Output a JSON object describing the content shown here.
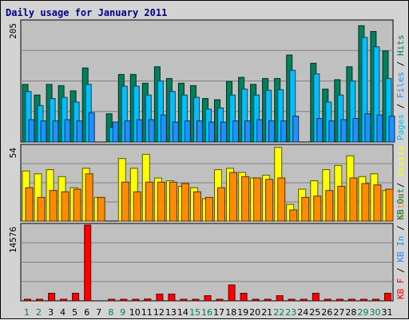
{
  "chart_data": {
    "type": "bar",
    "title": "Daily usage for January 2011",
    "categories": [
      "1",
      "2",
      "3",
      "4",
      "5",
      "6",
      "7",
      "8",
      "9",
      "10",
      "11",
      "12",
      "13",
      "14",
      "15",
      "16",
      "17",
      "18",
      "19",
      "20",
      "21",
      "22",
      "23",
      "24",
      "25",
      "26",
      "27",
      "28",
      "29",
      "30",
      "31"
    ],
    "weekend_days": [
      "1",
      "2",
      "8",
      "9",
      "15",
      "16",
      "22",
      "23",
      "29",
      "30"
    ],
    "colors": {
      "pages": "#00bfff",
      "files": "#1e90ff",
      "hits": "#00805c",
      "visits": "#ffff00",
      "sites": "#ff8c00",
      "kb": "#ff0000",
      "weekend_label": "#00805c",
      "weekday_label": "#000000",
      "title": "#00008b"
    },
    "panels": [
      {
        "name": "hits-files-pages",
        "ymax": 205,
        "ymax_label": "205",
        "side_labels": [
          {
            "text": "Pages",
            "color": "#00bfff"
          },
          {
            "text": " / ",
            "color": "#000000"
          },
          {
            "text": "Files",
            "color": "#1e90ff"
          },
          {
            "text": " / ",
            "color": "#000000"
          },
          {
            "text": "Hits",
            "color": "#00805c"
          }
        ],
        "series": [
          {
            "name": "Hits",
            "color": "#00805c",
            "values": [
              98,
              80,
              98,
              96,
              87,
              126,
              0,
              48,
              115,
              115,
              100,
              128,
              108,
              100,
              96,
              74,
              72,
              103,
              110,
              98,
              108,
              108,
              148,
              0,
              134,
              90,
              106,
              128,
              198,
              188,
              155
            ]
          },
          {
            "name": "Files",
            "color": "#00bfff",
            "values": [
              86,
              62,
              74,
              76,
              68,
              98,
              0,
              25,
              95,
              95,
              80,
              104,
              86,
              80,
              76,
              56,
              58,
              80,
              90,
              80,
              88,
              89,
              122,
              0,
              116,
              68,
              80,
              104,
              178,
              162,
              108
            ]
          },
          {
            "name": "Pages",
            "color": "#1e90ff",
            "values": [
              38,
              36,
              36,
              38,
              36,
              50,
              0,
              34,
              36,
              38,
              38,
              46,
              34,
              36,
              36,
              34,
              34,
              36,
              36,
              38,
              36,
              36,
              44,
              0,
              40,
              36,
              38,
              40,
              48,
              46,
              44
            ]
          }
        ]
      },
      {
        "name": "visits-sites",
        "ymax": 54,
        "ymax_label": "54",
        "side_labels": [
          {
            "text": "Sites",
            "color": "#ff8c00"
          },
          {
            "text": " / ",
            "color": "#000000"
          },
          {
            "text": "Visits",
            "color": "#ffff00"
          }
        ],
        "series": [
          {
            "name": "Visits",
            "color": "#ffff00",
            "values": [
              36,
              34,
              37,
              32,
              24,
              38,
              17,
              0,
              45,
              38,
              48,
              31,
              29,
              25,
              24,
              16,
              37,
              38,
              35,
              31,
              33,
              53,
              12,
              23,
              29,
              37,
              40,
              47,
              32,
              34,
              22
            ]
          },
          {
            "name": "Sites",
            "color": "#ff8c00",
            "values": [
              24,
              17,
              22,
              21,
              23,
              34,
              17,
              0,
              28,
              21,
              28,
              28,
              28,
              27,
              21,
              17,
              24,
              35,
              32,
              31,
              30,
              31,
              8,
              17,
              18,
              22,
              25,
              31,
              27,
              26,
              23
            ]
          }
        ]
      },
      {
        "name": "kb-in-out",
        "ymax": 14576,
        "ymax_label": "14576",
        "side_labels": [
          {
            "text": "KB F",
            "color": "#ff0000"
          },
          {
            "text": " / ",
            "color": "#000000"
          },
          {
            "text": "KB In",
            "color": "#1e90ff"
          },
          {
            "text": " / ",
            "color": "#000000"
          },
          {
            "text": "KB Out",
            "color": "#00805c"
          }
        ],
        "series": [
          {
            "name": "KB F",
            "color": "#ff0000",
            "values": [
              200,
              200,
              1450,
              200,
              1450,
              14576,
              0,
              200,
              200,
              200,
              350,
              1300,
              1300,
              200,
              200,
              1000,
              200,
              3050,
              1450,
              200,
              200,
              1000,
              200,
              200,
              1450,
              200,
              200,
              200,
              200,
              200,
              1450
            ]
          }
        ]
      }
    ],
    "side_label_order_note": "",
    "grid": true
  }
}
